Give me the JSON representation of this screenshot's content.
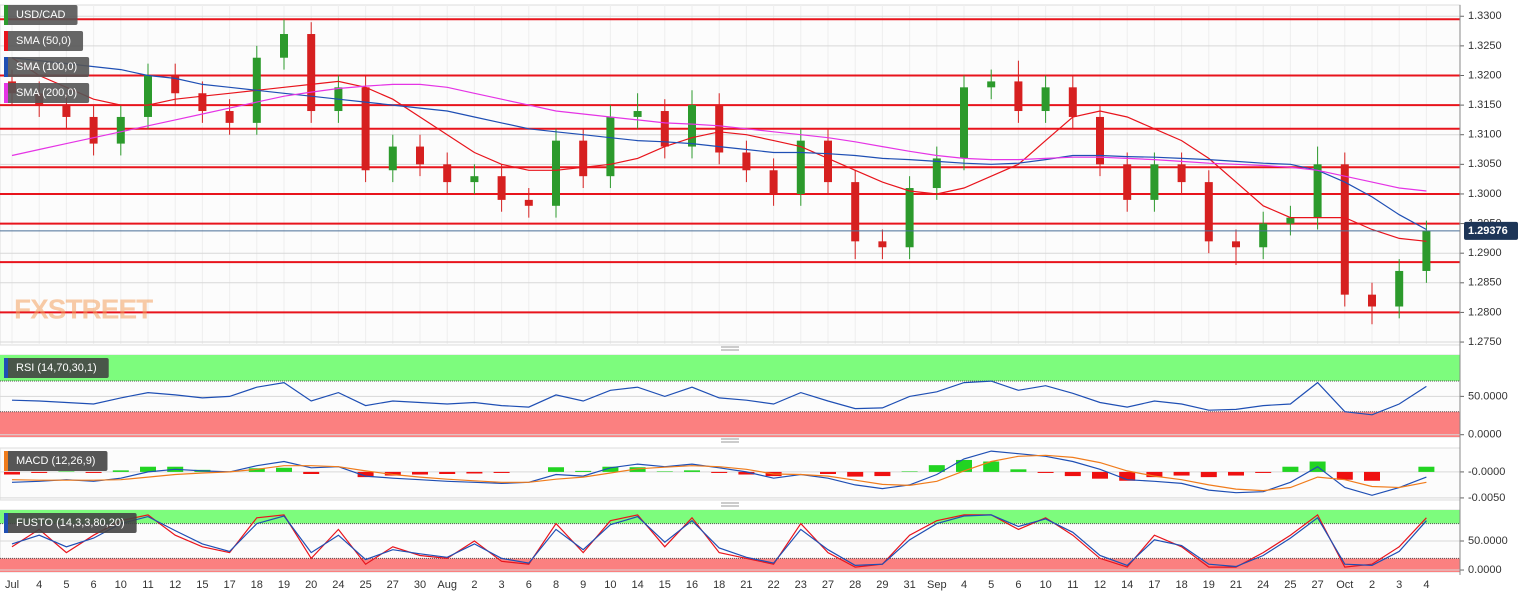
{
  "chart_data": [
    {
      "type": "candlestick",
      "watermark": "FXSTREET",
      "grid": true,
      "last_price": 1.29376,
      "categories": [
        "Jul",
        "4",
        "5",
        "6",
        "10",
        "11",
        "12",
        "15",
        "17",
        "18",
        "19",
        "20",
        "24",
        "25",
        "27",
        "30",
        "Aug",
        "2",
        "3",
        "6",
        "8",
        "9",
        "10",
        "14",
        "15",
        "16",
        "18",
        "21",
        "22",
        "23",
        "27",
        "28",
        "29",
        "31",
        "Sep",
        "4",
        "5",
        "6",
        "10",
        "11",
        "12",
        "14",
        "17",
        "18",
        "19",
        "21",
        "24",
        "25",
        "27",
        "Oct",
        "2",
        "3",
        "4"
      ],
      "ylim": [
        1.2745,
        1.3319
      ],
      "yticks": [
        {
          "value": 1.275,
          "label": "1.2750"
        },
        {
          "value": 1.28,
          "label": "1.2800"
        },
        {
          "value": 1.285,
          "label": "1.2850"
        },
        {
          "value": 1.29,
          "label": "1.2900"
        },
        {
          "value": 1.295,
          "label": "1.2950"
        },
        {
          "value": 1.3,
          "label": "1.3000"
        },
        {
          "value": 1.305,
          "label": "1.3050"
        },
        {
          "value": 1.31,
          "label": "1.3100"
        },
        {
          "value": 1.315,
          "label": "1.3150"
        },
        {
          "value": 1.32,
          "label": "1.3200"
        },
        {
          "value": 1.325,
          "label": "1.3250"
        },
        {
          "value": 1.33,
          "label": "1.3300"
        }
      ],
      "levels": [
        1.3295,
        1.32,
        1.315,
        1.311,
        1.3045,
        1.3,
        1.295,
        1.2885,
        1.28
      ],
      "level_color": "#e8141c",
      "series": [
        {
          "name": "USD/CAD",
          "type": "candlestick",
          "color": "#2c9a2c",
          "negative_color": "#d62020",
          "open": [
            1.319,
            1.317,
            1.315,
            1.313,
            1.3085,
            1.313,
            1.32,
            1.317,
            1.314,
            1.312,
            1.323,
            1.327,
            1.314,
            1.318,
            1.304,
            1.308,
            1.305,
            1.302,
            1.303,
            1.299,
            1.298,
            1.309,
            1.303,
            1.313,
            1.314,
            1.308,
            1.315,
            1.307,
            1.304,
            1.3,
            1.309,
            1.302,
            1.292,
            1.291,
            1.301,
            1.306,
            1.318,
            1.319,
            1.314,
            1.318,
            1.313,
            1.305,
            1.299,
            1.305,
            1.302,
            1.292,
            1.291,
            1.295,
            1.296,
            1.305,
            1.283,
            1.281,
            1.287
          ],
          "high": [
            1.321,
            1.319,
            1.317,
            1.315,
            1.315,
            1.322,
            1.322,
            1.319,
            1.316,
            1.325,
            1.3295,
            1.329,
            1.32,
            1.32,
            1.31,
            1.31,
            1.307,
            1.305,
            1.305,
            1.301,
            1.311,
            1.311,
            1.315,
            1.317,
            1.316,
            1.3175,
            1.317,
            1.309,
            1.306,
            1.311,
            1.311,
            1.304,
            1.294,
            1.303,
            1.308,
            1.32,
            1.321,
            1.3225,
            1.32,
            1.32,
            1.315,
            1.307,
            1.307,
            1.307,
            1.304,
            1.294,
            1.297,
            1.298,
            1.308,
            1.307,
            1.285,
            1.289,
            1.2955
          ],
          "low": [
            1.315,
            1.313,
            1.311,
            1.3065,
            1.3065,
            1.311,
            1.315,
            1.312,
            1.31,
            1.31,
            1.321,
            1.312,
            1.312,
            1.302,
            1.302,
            1.303,
            1.3,
            1.3,
            1.297,
            1.296,
            1.296,
            1.301,
            1.301,
            1.311,
            1.306,
            1.306,
            1.305,
            1.302,
            1.298,
            1.298,
            1.3,
            1.289,
            1.289,
            1.289,
            1.299,
            1.304,
            1.316,
            1.312,
            1.312,
            1.311,
            1.303,
            1.297,
            1.297,
            1.3,
            1.29,
            1.288,
            1.289,
            1.293,
            1.294,
            1.281,
            1.278,
            1.279,
            1.285
          ],
          "close": [
            1.317,
            1.315,
            1.313,
            1.3085,
            1.313,
            1.32,
            1.317,
            1.314,
            1.312,
            1.323,
            1.327,
            1.314,
            1.318,
            1.304,
            1.308,
            1.305,
            1.302,
            1.303,
            1.299,
            1.298,
            1.309,
            1.303,
            1.313,
            1.314,
            1.308,
            1.315,
            1.307,
            1.304,
            1.3,
            1.309,
            1.302,
            1.292,
            1.291,
            1.301,
            1.306,
            1.318,
            1.319,
            1.314,
            1.318,
            1.313,
            1.305,
            1.299,
            1.305,
            1.302,
            1.292,
            1.291,
            1.295,
            1.296,
            1.305,
            1.283,
            1.281,
            1.287,
            1.2938
          ]
        },
        {
          "name": "SMA (50,0)",
          "type": "line",
          "color": "#e8141c",
          "values": [
            1.323,
            1.32,
            1.318,
            1.316,
            1.315,
            1.315,
            1.316,
            1.3165,
            1.317,
            1.3175,
            1.318,
            1.3185,
            1.319,
            1.318,
            1.316,
            1.313,
            1.31,
            1.307,
            1.305,
            1.304,
            1.304,
            1.3045,
            1.305,
            1.306,
            1.308,
            1.3095,
            1.3105,
            1.31,
            1.309,
            1.308,
            1.306,
            1.304,
            1.302,
            1.3005,
            1.3,
            1.301,
            1.303,
            1.305,
            1.309,
            1.313,
            1.314,
            1.313,
            1.311,
            1.309,
            1.306,
            1.302,
            1.298,
            1.296,
            1.296,
            1.296,
            1.294,
            1.2925,
            1.292
          ]
        },
        {
          "name": "SMA (100,0)",
          "type": "line",
          "color": "#1f4fb4",
          "values": [
            1.323,
            1.3225,
            1.322,
            1.3215,
            1.321,
            1.32,
            1.3195,
            1.3185,
            1.318,
            1.3175,
            1.317,
            1.3165,
            1.316,
            1.3155,
            1.315,
            1.3145,
            1.314,
            1.313,
            1.312,
            1.311,
            1.3105,
            1.31,
            1.3095,
            1.309,
            1.3088,
            1.3085,
            1.308,
            1.3075,
            1.307,
            1.307,
            1.3068,
            1.3065,
            1.306,
            1.3058,
            1.3055,
            1.3052,
            1.305,
            1.3052,
            1.3058,
            1.3065,
            1.3065,
            1.3063,
            1.3062,
            1.306,
            1.3058,
            1.3055,
            1.3052,
            1.305,
            1.304,
            1.302,
            1.2995,
            1.2965,
            1.294
          ]
        },
        {
          "name": "SMA (200,0)",
          "type": "line",
          "color": "#e534e5",
          "values": [
            1.3065,
            1.3075,
            1.3085,
            1.3095,
            1.3105,
            1.3115,
            1.3125,
            1.3135,
            1.3145,
            1.3155,
            1.3165,
            1.3172,
            1.3178,
            1.3182,
            1.3185,
            1.3185,
            1.318,
            1.317,
            1.316,
            1.315,
            1.314,
            1.3135,
            1.313,
            1.3125,
            1.312,
            1.3118,
            1.3115,
            1.311,
            1.3105,
            1.31,
            1.3095,
            1.3088,
            1.308,
            1.3072,
            1.3065,
            1.306,
            1.3058,
            1.3058,
            1.306,
            1.3062,
            1.3062,
            1.306,
            1.3058,
            1.3055,
            1.3052,
            1.305,
            1.3048,
            1.3045,
            1.304,
            1.303,
            1.302,
            1.301,
            1.3005
          ]
        }
      ]
    },
    {
      "type": "line",
      "title": "RSI (14,70,30,1)",
      "overbought": 70,
      "oversold": 30,
      "zone_colors": [
        "#7dfc7d",
        "#fb8080"
      ],
      "ylim": [
        -3,
        104
      ],
      "yticks": [
        {
          "value": 0,
          "label": "0.0000"
        },
        {
          "value": 50,
          "label": "50.0000"
        }
      ],
      "series": [
        {
          "color": "#1f4fb4",
          "values": [
            45,
            44,
            42,
            40,
            48,
            55,
            52,
            48,
            50,
            62,
            68,
            44,
            55,
            38,
            44,
            42,
            40,
            42,
            38,
            36,
            52,
            44,
            58,
            62,
            50,
            62,
            48,
            45,
            40,
            55,
            44,
            34,
            35,
            50,
            56,
            68,
            70,
            58,
            64,
            54,
            42,
            36,
            44,
            40,
            32,
            33,
            38,
            40,
            68,
            30,
            26,
            40,
            63
          ]
        }
      ]
    },
    {
      "type": "line",
      "title": "MACD (12,26,9)",
      "ylim": [
        -0.0054,
        0.0046
      ],
      "yticks": [
        {
          "value": -0.005,
          "label": "-0.0050"
        },
        {
          "value": 0,
          "label": "-0.0000"
        }
      ],
      "series": [
        {
          "type": "bar",
          "color": "#22d422",
          "negative_color": "#ee1010",
          "values": [
            -0.0005,
            -0.0002,
            0.0001,
            -0.0002,
            0.0003,
            0.001,
            0.001,
            0.0004,
            0.0,
            0.0007,
            0.0008,
            -0.0004,
            0.0,
            -0.001,
            -0.0007,
            -0.0005,
            -0.0004,
            -0.0003,
            -0.0002,
            0.0,
            0.0009,
            0.0002,
            0.001,
            0.0009,
            0.0001,
            0.0003,
            -0.0002,
            -0.0005,
            -0.0008,
            0.0,
            -0.0004,
            -0.0009,
            -0.0008,
            0.0001,
            0.0013,
            0.0023,
            0.002,
            0.0005,
            -0.0002,
            -0.0008,
            -0.0013,
            -0.0017,
            -0.001,
            -0.0007,
            -0.001,
            -0.0007,
            -0.0002,
            0.001,
            0.002,
            -0.0015,
            -0.0017,
            0.0,
            0.001
          ]
        },
        {
          "type": "line",
          "color": "#1f4fb4",
          "values": [
            -0.002,
            -0.0018,
            -0.0015,
            -0.0018,
            -0.0012,
            0.0,
            0.0005,
            0.0002,
            0.0,
            0.0012,
            0.002,
            0.0008,
            0.001,
            -0.0008,
            -0.0012,
            -0.0015,
            -0.0018,
            -0.002,
            -0.0022,
            -0.002,
            -0.0005,
            -0.0008,
            0.0008,
            0.0015,
            0.001,
            0.0015,
            0.0008,
            0.0,
            -0.0012,
            -0.0005,
            -0.0012,
            -0.0025,
            -0.0032,
            -0.0025,
            -0.0005,
            0.0025,
            0.004,
            0.0035,
            0.003,
            0.002,
            0.0005,
            -0.0015,
            -0.0018,
            -0.0022,
            -0.0035,
            -0.004,
            -0.0038,
            -0.002,
            0.001,
            -0.003,
            -0.0045,
            -0.003,
            -0.001
          ]
        },
        {
          "type": "line",
          "color": "#f07c1c",
          "values": [
            -0.0015,
            -0.0016,
            -0.0016,
            -0.0016,
            -0.0015,
            -0.001,
            -0.0005,
            -0.0002,
            0.0,
            0.0005,
            0.0012,
            0.0012,
            0.001,
            0.0002,
            -0.0005,
            -0.001,
            -0.0014,
            -0.0017,
            -0.002,
            -0.002,
            -0.0014,
            -0.001,
            -0.0002,
            0.0006,
            0.0009,
            0.0012,
            0.001,
            0.0005,
            -0.0004,
            -0.0005,
            -0.0008,
            -0.0016,
            -0.0024,
            -0.0026,
            -0.0018,
            0.0002,
            0.002,
            0.003,
            0.0032,
            0.0028,
            0.0018,
            0.0002,
            -0.0008,
            -0.0015,
            -0.0025,
            -0.0033,
            -0.0036,
            -0.003,
            -0.001,
            -0.0015,
            -0.0028,
            -0.003,
            -0.002
          ]
        }
      ]
    },
    {
      "type": "line",
      "title": "FUSTO (14,3,3,80,20)",
      "overbought": 80,
      "oversold": 20,
      "zone_colors": [
        "#7dfc7d",
        "#fb8080"
      ],
      "ylim": [
        -3.4,
        103.4
      ],
      "yticks": [
        {
          "value": 0,
          "label": "0.0000"
        },
        {
          "value": 50,
          "label": "50.0000"
        }
      ],
      "series": [
        {
          "color": "#e8141c",
          "values": [
            40,
            70,
            30,
            60,
            85,
            95,
            60,
            40,
            30,
            90,
            95,
            20,
            70,
            10,
            40,
            25,
            20,
            50,
            15,
            10,
            80,
            30,
            85,
            95,
            40,
            90,
            30,
            20,
            10,
            80,
            30,
            5,
            10,
            60,
            85,
            95,
            95,
            70,
            90,
            60,
            20,
            5,
            60,
            40,
            5,
            5,
            30,
            60,
            95,
            5,
            10,
            40,
            90
          ]
        },
        {
          "color": "#1f4fb4",
          "values": [
            45,
            60,
            40,
            55,
            80,
            92,
            68,
            45,
            32,
            80,
            93,
            30,
            60,
            18,
            35,
            28,
            22,
            45,
            20,
            12,
            70,
            35,
            78,
            92,
            48,
            85,
            38,
            22,
            12,
            70,
            35,
            8,
            10,
            52,
            80,
            93,
            95,
            75,
            88,
            65,
            25,
            8,
            52,
            42,
            10,
            6,
            25,
            55,
            90,
            10,
            8,
            32,
            85
          ]
        }
      ]
    }
  ]
}
